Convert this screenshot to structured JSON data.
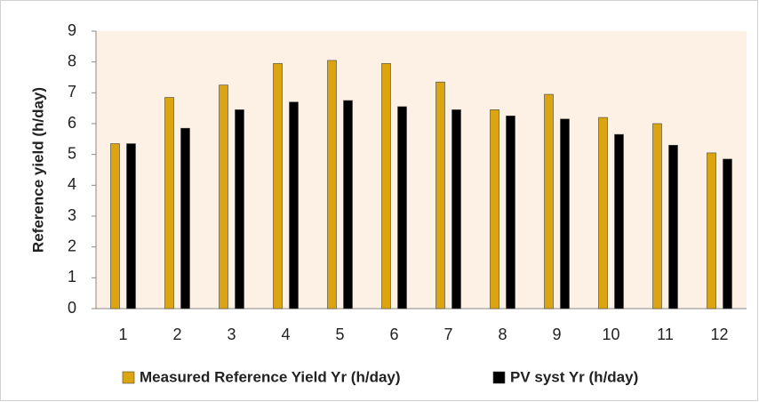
{
  "chart_data": {
    "type": "bar",
    "y_label": "Reference yield (h/day)",
    "categories": [
      "1",
      "2",
      "3",
      "4",
      "5",
      "6",
      "7",
      "8",
      "9",
      "10",
      "11",
      "12"
    ],
    "series": [
      {
        "name": "Measured Reference Yield Yr (h/day)",
        "color": "#dba512",
        "values": [
          5.35,
          6.85,
          7.25,
          7.95,
          8.05,
          7.95,
          7.35,
          6.45,
          6.95,
          6.2,
          6.0,
          5.05
        ]
      },
      {
        "name": "PV syst Yr (h/day)",
        "color": "#000000",
        "values": [
          5.35,
          5.85,
          6.45,
          6.7,
          6.75,
          6.55,
          6.45,
          6.25,
          6.15,
          5.65,
          5.3,
          4.85
        ]
      }
    ],
    "ylim": [
      0,
      9
    ],
    "yticks": [
      0,
      1,
      2,
      3,
      4,
      5,
      6,
      7,
      8,
      9
    ],
    "plot_background": "#fdf0e4"
  }
}
